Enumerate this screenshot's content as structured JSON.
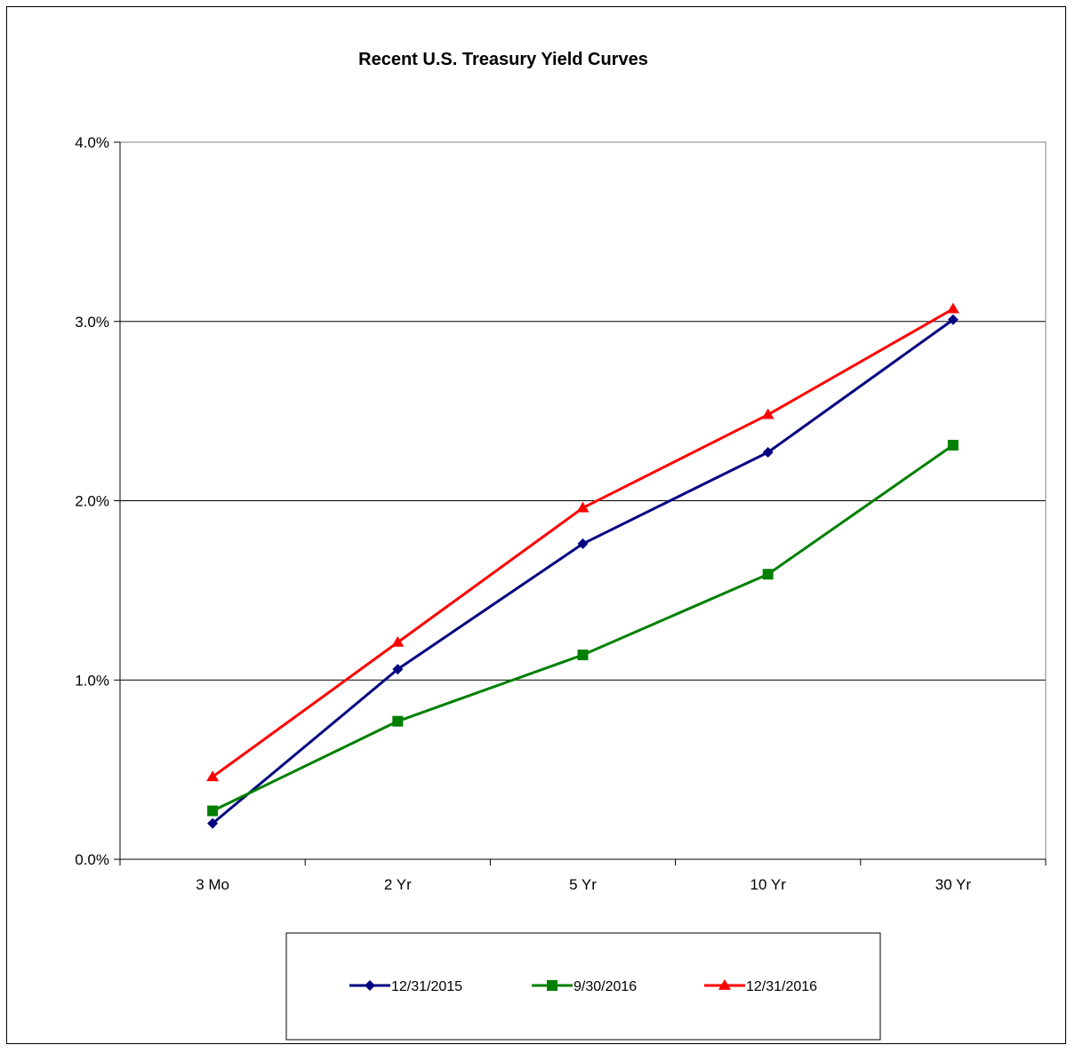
{
  "chart_data": {
    "type": "line",
    "title": "Recent U.S. Treasury Yield Curves",
    "xlabel": "",
    "ylabel": "",
    "categories": [
      "3 Mo",
      "2 Yr",
      "5 Yr",
      "10 Yr",
      "30 Yr"
    ],
    "ylim": [
      0.0,
      4.0
    ],
    "yticks": [
      0.0,
      1.0,
      2.0,
      3.0,
      4.0
    ],
    "ytick_labels": [
      "0.0%",
      "1.0%",
      "2.0%",
      "3.0%",
      "4.0%"
    ],
    "grid": "horizontal",
    "legend_position": "bottom",
    "series": [
      {
        "name": "12/31/2015",
        "values": [
          0.2,
          1.06,
          1.76,
          2.27,
          3.01
        ],
        "color": "#000080",
        "marker": "diamond"
      },
      {
        "name": "9/30/2016",
        "values": [
          0.27,
          0.77,
          1.14,
          1.59,
          2.31
        ],
        "color": "#008000",
        "marker": "square"
      },
      {
        "name": "12/31/2016",
        "values": [
          0.46,
          1.21,
          1.96,
          2.48,
          3.07
        ],
        "color": "#ff0000",
        "marker": "triangle"
      }
    ]
  }
}
